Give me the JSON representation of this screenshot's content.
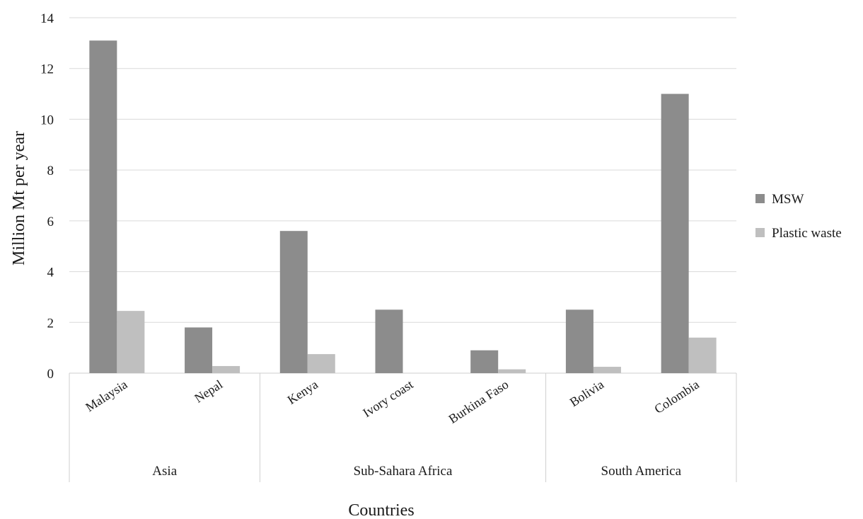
{
  "chart_data": {
    "type": "bar",
    "categories": [
      "Malaysia",
      "Nepal",
      "Kenya",
      "Ivory coast",
      "Burkina Faso",
      "Bolivia",
      "Colombia"
    ],
    "groups": [
      {
        "label": "Asia",
        "categories": [
          "Malaysia",
          "Nepal"
        ]
      },
      {
        "label": "Sub-Sahara Africa",
        "categories": [
          "Kenya",
          "Ivory coast",
          "Burkina Faso"
        ]
      },
      {
        "label": "South America",
        "categories": [
          "Bolivia",
          "Colombia"
        ]
      }
    ],
    "series": [
      {
        "name": "MSW",
        "color": "#8c8c8c",
        "values": [
          13.1,
          1.8,
          5.6,
          2.5,
          0.9,
          2.5,
          11.0
        ]
      },
      {
        "name": "Plastic waste",
        "color": "#bfbfbf",
        "values": [
          2.45,
          0.28,
          0.75,
          0.0,
          0.15,
          0.25,
          1.4
        ]
      }
    ],
    "title": "",
    "xlabel": "Countries",
    "ylabel": "Million Mt per year",
    "ylim": [
      0,
      14
    ],
    "yticks": [
      0,
      2,
      4,
      6,
      8,
      10,
      12,
      14
    ],
    "grid": true,
    "legend_position": "right"
  }
}
